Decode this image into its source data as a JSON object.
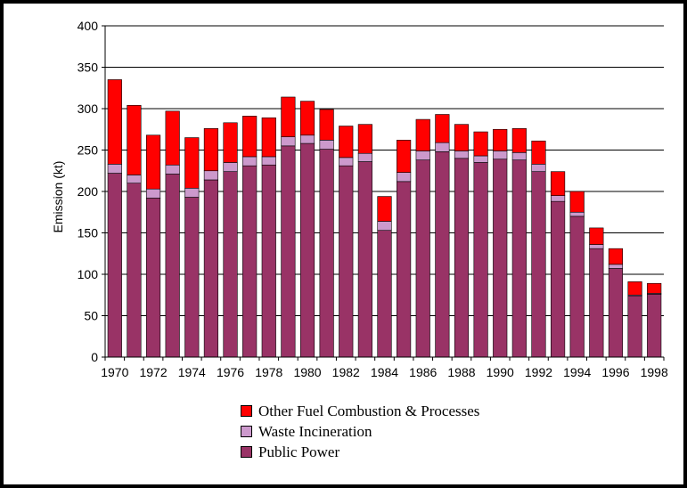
{
  "chart_data": {
    "type": "bar",
    "stacked": true,
    "ylabel": "Emission (kt)",
    "xlabel": "",
    "ylim": [
      0,
      400
    ],
    "yticks": [
      0,
      50,
      100,
      150,
      200,
      250,
      300,
      350,
      400
    ],
    "grid": "horizontal",
    "legend_position": "bottom",
    "categories": [
      "1970",
      "1971",
      "1972",
      "1973",
      "1974",
      "1975",
      "1976",
      "1977",
      "1978",
      "1979",
      "1980",
      "1981",
      "1982",
      "1983",
      "1984",
      "1985",
      "1986",
      "1987",
      "1988",
      "1989",
      "1990",
      "1991",
      "1992",
      "1993",
      "1994",
      "1995",
      "1996",
      "1997",
      "1998"
    ],
    "xtick_labels": [
      "1970",
      "1972",
      "1974",
      "1976",
      "1978",
      "1980",
      "1982",
      "1984",
      "1986",
      "1988",
      "1990",
      "1992",
      "1994",
      "1996",
      "1998"
    ],
    "series": [
      {
        "name": "Public Power",
        "color": "#993366",
        "values": [
          222,
          210,
          192,
          221,
          193,
          214,
          224,
          231,
          232,
          255,
          258,
          251,
          231,
          236,
          153,
          212,
          238,
          248,
          240,
          235,
          239,
          238,
          224,
          188,
          170,
          131,
          107,
          74,
          76
        ]
      },
      {
        "name": "Waste Incineration",
        "color": "#CC99CC",
        "values": [
          11,
          10,
          11,
          11,
          11,
          11,
          11,
          11,
          10,
          11,
          10,
          11,
          10,
          10,
          11,
          11,
          11,
          11,
          9,
          8,
          10,
          9,
          9,
          7,
          5,
          5,
          5,
          1,
          1
        ]
      },
      {
        "name": "Other Fuel Combustion & Processes",
        "color": "#FF0000",
        "values": [
          102,
          84,
          65,
          65,
          61,
          51,
          48,
          49,
          47,
          48,
          41,
          37,
          38,
          35,
          30,
          39,
          38,
          34,
          32,
          29,
          26,
          29,
          28,
          29,
          25,
          20,
          19,
          16,
          12
        ]
      }
    ],
    "legend": [
      "Other Fuel Combustion & Processes",
      "Waste Incineration",
      "Public Power"
    ]
  }
}
